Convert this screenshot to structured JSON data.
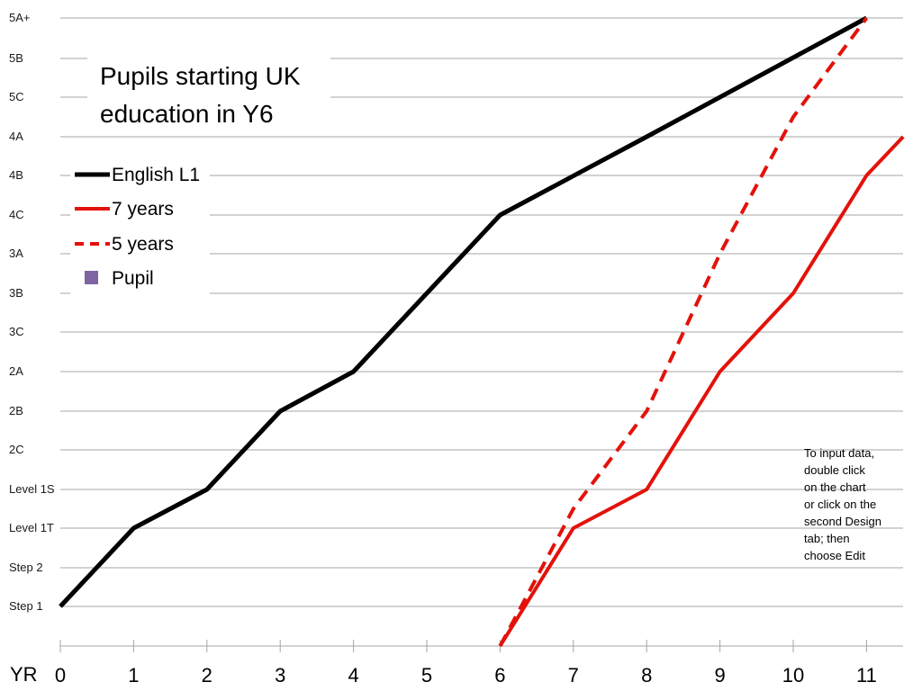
{
  "chart_data": {
    "type": "line",
    "title": "Pupils starting UK education in Y6",
    "xlabel": "YR",
    "ylabel": "",
    "x": [
      0,
      1,
      2,
      3,
      4,
      5,
      6,
      7,
      8,
      9,
      10,
      11
    ],
    "x_tick_labels": [
      "0",
      "1",
      "2",
      "3",
      "4",
      "5",
      "6",
      "7",
      "8",
      "9",
      "10",
      "11"
    ],
    "y_levels": [
      "Step 1",
      "Step 2",
      "Level 1T",
      "Level 1S",
      "2C",
      "2B",
      "2A",
      "3C",
      "3B",
      "3A",
      "4C",
      "4B",
      "4A",
      "5C",
      "5B",
      "5A+"
    ],
    "series": [
      {
        "name": "English L1",
        "color": "#000000",
        "style": "solid",
        "points": [
          [
            0,
            0
          ],
          [
            1,
            2
          ],
          [
            2,
            3
          ],
          [
            3,
            5
          ],
          [
            4,
            6
          ],
          [
            6,
            10
          ],
          [
            8,
            12
          ],
          [
            11,
            15
          ]
        ]
      },
      {
        "name": "7 years",
        "color": "#e3120b",
        "style": "solid",
        "points": [
          [
            6,
            -1
          ],
          [
            7,
            2
          ],
          [
            8,
            3
          ],
          [
            9,
            6
          ],
          [
            10,
            8
          ],
          [
            11,
            11
          ],
          [
            11.5,
            12
          ]
        ]
      },
      {
        "name": "5 years",
        "color": "#e3120b",
        "style": "dashed",
        "points": [
          [
            6,
            -1
          ],
          [
            7,
            2.5
          ],
          [
            8,
            5
          ],
          [
            9,
            9
          ],
          [
            10,
            12.5
          ],
          [
            11,
            15
          ]
        ]
      },
      {
        "name": "Pupil",
        "color": "#8064a2",
        "style": "marker",
        "points": []
      }
    ],
    "grid": true,
    "legend_position": "left",
    "annotation": "To input data, double click on the chart or click on the second Design tab; then choose Edit"
  },
  "colors": {
    "grid": "#a6a6a6",
    "english": "#000000",
    "red": "#e3120b",
    "pupil": "#8064a2"
  }
}
